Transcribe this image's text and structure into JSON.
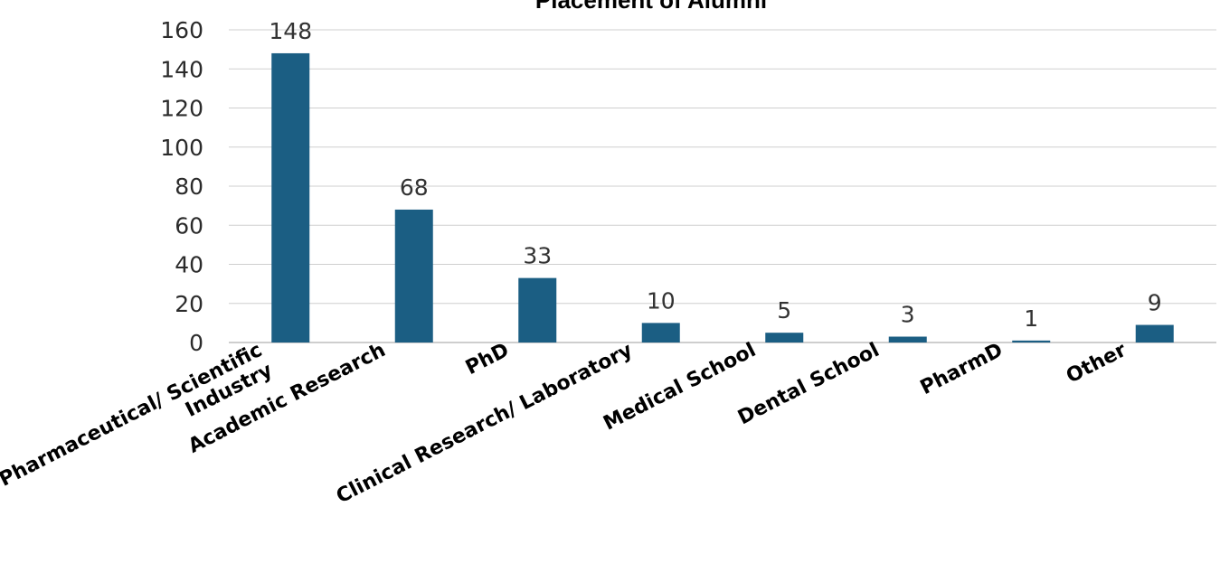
{
  "chart_data": {
    "type": "bar",
    "title": "Placement of Alumni",
    "categories": [
      [
        "Pharmaceutical/ Scientific",
        "Industry"
      ],
      [
        "Academic Research"
      ],
      [
        "PhD"
      ],
      [
        "Clinical Research/ Laboratory"
      ],
      [
        "Medical School"
      ],
      [
        "Dental School"
      ],
      [
        "PharmD"
      ],
      [
        "Other"
      ]
    ],
    "values": [
      148,
      68,
      33,
      10,
      5,
      3,
      1,
      9
    ],
    "data_labels": [
      "148",
      "68",
      "33",
      "10",
      "5",
      "3",
      "1",
      "9"
    ],
    "yticks": [
      "0",
      "20",
      "40",
      "60",
      "80",
      "100",
      "120",
      "140",
      "160"
    ],
    "ylim": [
      0,
      160
    ],
    "xlabel": "",
    "ylabel": "",
    "grid": true,
    "colors": {
      "bar": "#1b5e83"
    }
  }
}
